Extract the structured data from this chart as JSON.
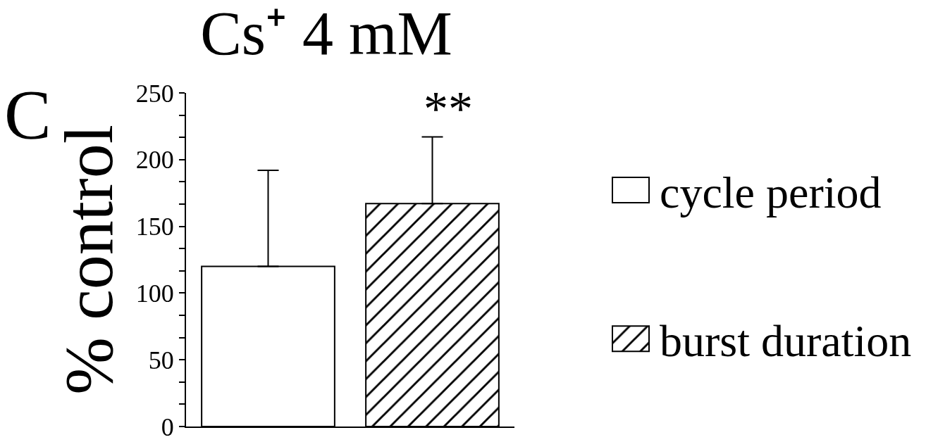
{
  "chart_data": {
    "type": "bar",
    "title": "Cs⁺ 4 mM",
    "ylabel": "% control",
    "annotations": [
      "C",
      "**"
    ],
    "categories": [
      null
    ],
    "series": [
      {
        "name": "cycle period",
        "color": "#ffffff",
        "values": [
          120
        ],
        "errors": [
          [
            120,
            192
          ]
        ]
      },
      {
        "name": "burst duration",
        "color": "#000000",
        "values": [
          167
        ],
        "errors": [
          [
            167,
            217
          ]
        ]
      }
    ],
    "ylim": [
      0,
      250
    ],
    "yticks": [
      0,
      {
        "value": 16.7,
        "label": null
      },
      {
        "value": 33.3,
        "label": null
      },
      50,
      {
        "value": 66.7,
        "label": null
      },
      {
        "value": 83.3,
        "label": null
      },
      100,
      {
        "value": 116.7,
        "label": null
      },
      {
        "value": 133.3,
        "label": null
      },
      150,
      {
        "value": 166.7,
        "label": null
      },
      {
        "value": 183.3,
        "label": null
      },
      200,
      {
        "value": 216.7,
        "label": null
      },
      {
        "value": 233.3,
        "label": null
      },
      250
    ],
    "legend": "right"
  }
}
